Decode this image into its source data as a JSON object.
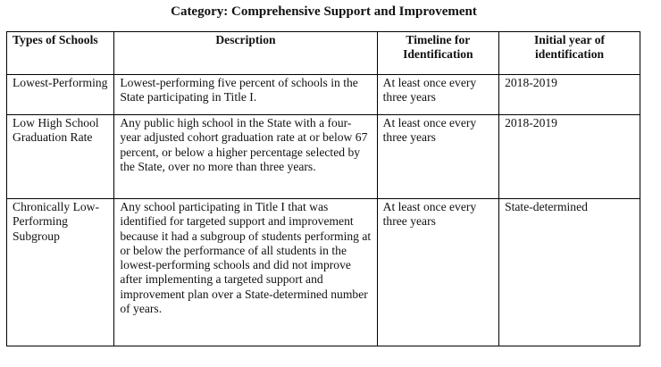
{
  "title": "Category: Comprehensive Support and Improvement",
  "table": {
    "headers": [
      "Types of Schools",
      "Description",
      "Timeline for Identification",
      "Initial year of identification"
    ],
    "rows": [
      [
        "Lowest-Performing",
        "Lowest-performing five percent of schools in the State participating in Title I.",
        "At least once every three years",
        "2018-2019"
      ],
      [
        "Low High School Graduation Rate",
        "Any public high school in the State with a four-year adjusted cohort graduation rate at or below 67 percent, or below a higher percentage selected by the State, over no more than three years.",
        "At least once every three years",
        "2018-2019"
      ],
      [
        "Chronically Low-Performing Subgroup",
        "Any school participating in Title I that was identified for targeted support and improvement because it had a subgroup of students performing at or below the performance of all students in the lowest-performing schools and did not improve after implementing a targeted support and improvement plan over a State-determined number of years.",
        "At least once every three years",
        "State-determined"
      ]
    ]
  }
}
